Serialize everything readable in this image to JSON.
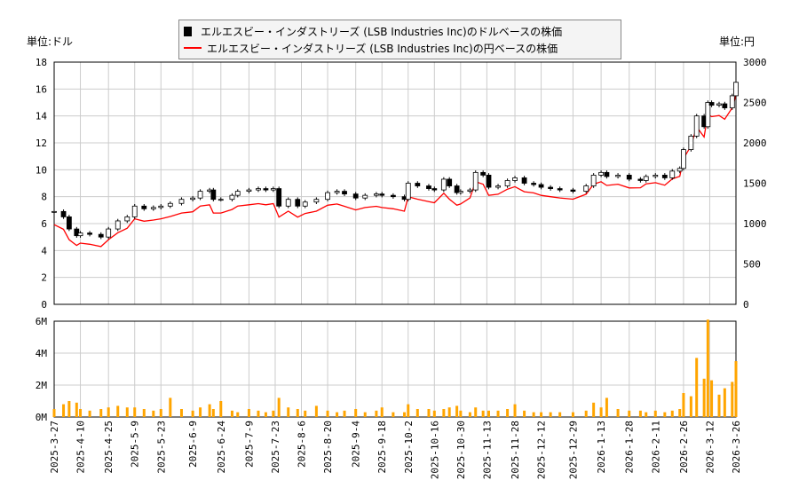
{
  "legend": {
    "usd": "エルエスビー・インダストリーズ (LSB Industries Inc)のドルベースの株価",
    "jpy": "エルエスビー・インダストリーズ (LSB Industries Inc)の円ベースの株価"
  },
  "units": {
    "left": "単位:ドル",
    "right": "単位:円"
  },
  "colors": {
    "candle": "#000000",
    "yen_line": "#ff0000",
    "volume": "#ffa500",
    "grid": "#cccccc"
  },
  "chart_data": [
    {
      "type": "candlestick+line",
      "ylim_left": [
        0,
        18
      ],
      "ylim_right": [
        0,
        3000
      ],
      "grid": true,
      "legend": "top-center",
      "yticks_left": [
        "0",
        "2",
        "4",
        "6",
        "8",
        "10",
        "12",
        "14",
        "16",
        "18"
      ],
      "yticks_right": [
        "0",
        "500",
        "1000",
        "1500",
        "2000",
        "2500",
        "3000"
      ],
      "xticks": [
        "2025-3-27",
        "2025-4-10",
        "2025-4-25",
        "2025-5-9",
        "2025-5-23",
        "2025-6-9",
        "2025-6-24",
        "2025-7-9",
        "2025-7-23",
        "2025-8-6",
        "2025-8-20",
        "2025-9-4",
        "2025-9-18",
        "2025-10-2",
        "2025-10-16",
        "2025-10-30",
        "2025-11-13",
        "2025-11-28",
        "2025-12-12",
        "2025-12-29",
        "2026-1-13",
        "2026-1-28",
        "2026-2-11",
        "2026-2-26",
        "2026-3-12",
        "2026-3-26"
      ],
      "dates": [
        "2025-03-27",
        "2025-04-01",
        "2025-04-04",
        "2025-04-08",
        "2025-04-10",
        "2025-04-15",
        "2025-04-21",
        "2025-04-25",
        "2025-04-30",
        "2025-05-05",
        "2025-05-09",
        "2025-05-14",
        "2025-05-19",
        "2025-05-23",
        "2025-05-28",
        "2025-06-03",
        "2025-06-09",
        "2025-06-13",
        "2025-06-18",
        "2025-06-20",
        "2025-06-24",
        "2025-06-30",
        "2025-07-03",
        "2025-07-09",
        "2025-07-14",
        "2025-07-18",
        "2025-07-22",
        "2025-07-25",
        "2025-07-30",
        "2025-08-04",
        "2025-08-08",
        "2025-08-14",
        "2025-08-20",
        "2025-08-25",
        "2025-08-29",
        "2025-09-04",
        "2025-09-09",
        "2025-09-15",
        "2025-09-18",
        "2025-09-24",
        "2025-09-30",
        "2025-10-02",
        "2025-10-07",
        "2025-10-13",
        "2025-10-16",
        "2025-10-21",
        "2025-10-24",
        "2025-10-28",
        "2025-10-30",
        "2025-11-04",
        "2025-11-07",
        "2025-11-11",
        "2025-11-14",
        "2025-11-19",
        "2025-11-24",
        "2025-11-28",
        "2025-12-03",
        "2025-12-08",
        "2025-12-12",
        "2025-12-17",
        "2025-12-22",
        "2025-12-29",
        "2026-01-05",
        "2026-01-09",
        "2026-01-13",
        "2026-01-16",
        "2026-01-22",
        "2026-01-28",
        "2026-02-03",
        "2026-02-06",
        "2026-02-11",
        "2026-02-16",
        "2026-02-20",
        "2026-02-24",
        "2026-02-26",
        "2026-03-02",
        "2026-03-05",
        "2026-03-09",
        "2026-03-11",
        "2026-03-13",
        "2026-03-17",
        "2026-03-20",
        "2026-03-24",
        "2026-03-26"
      ],
      "usd_close": [
        6.9,
        6.5,
        5.6,
        5.1,
        5.3,
        5.2,
        5.0,
        5.6,
        6.2,
        6.5,
        7.3,
        7.1,
        7.2,
        7.3,
        7.5,
        7.8,
        7.9,
        8.4,
        8.5,
        7.8,
        7.8,
        8.1,
        8.4,
        8.5,
        8.6,
        8.5,
        8.6,
        7.3,
        7.8,
        7.3,
        7.6,
        7.8,
        8.3,
        8.4,
        8.2,
        7.9,
        8.1,
        8.2,
        8.1,
        8.0,
        7.8,
        9.0,
        8.8,
        8.6,
        8.5,
        9.3,
        8.8,
        8.3,
        8.4,
        8.5,
        9.8,
        9.6,
        8.7,
        8.8,
        9.2,
        9.4,
        9.0,
        8.9,
        8.7,
        8.6,
        8.5,
        8.4,
        8.8,
        9.6,
        9.8,
        9.5,
        9.6,
        9.3,
        9.2,
        9.5,
        9.6,
        9.4,
        9.9,
        10.1,
        11.5,
        12.5,
        14.0,
        13.2,
        15.0,
        14.8,
        14.9,
        14.6,
        15.5,
        16.5
      ],
      "jpy_close": [
        987,
        930,
        800,
        730,
        758,
        744,
        715,
        801,
        887,
        943,
        1059,
        1030,
        1044,
        1059,
        1088,
        1131,
        1146,
        1218,
        1233,
        1131,
        1131,
        1175,
        1218,
        1233,
        1247,
        1233,
        1247,
        1080,
        1154,
        1080,
        1125,
        1154,
        1228,
        1243,
        1214,
        1169,
        1199,
        1214,
        1199,
        1184,
        1154,
        1332,
        1302,
        1273,
        1258,
        1376,
        1302,
        1228,
        1243,
        1318,
        1519,
        1488,
        1349,
        1364,
        1426,
        1457,
        1395,
        1380,
        1349,
        1333,
        1318,
        1302,
        1364,
        1488,
        1519,
        1473,
        1488,
        1442,
        1444,
        1492,
        1507,
        1476,
        1554,
        1586,
        1806,
        1963,
        2198,
        2072,
        2355,
        2324,
        2339,
        2292,
        2434,
        2590
      ]
    },
    {
      "type": "bar",
      "ylim": [
        0,
        6
      ],
      "yticks": [
        "0M",
        "2M",
        "4M",
        "6M"
      ],
      "volume_millions": [
        0.5,
        0.8,
        1.0,
        0.9,
        0.5,
        0.4,
        0.5,
        0.6,
        0.7,
        0.6,
        0.6,
        0.5,
        0.4,
        0.5,
        1.2,
        0.5,
        0.4,
        0.6,
        0.8,
        0.5,
        1.0,
        0.4,
        0.3,
        0.5,
        0.4,
        0.3,
        0.4,
        1.2,
        0.6,
        0.5,
        0.4,
        0.7,
        0.4,
        0.3,
        0.4,
        0.5,
        0.3,
        0.4,
        0.6,
        0.3,
        0.3,
        0.8,
        0.5,
        0.5,
        0.4,
        0.5,
        0.6,
        0.7,
        0.4,
        0.3,
        0.6,
        0.4,
        0.4,
        0.4,
        0.5,
        0.8,
        0.4,
        0.3,
        0.3,
        0.3,
        0.3,
        0.3,
        0.4,
        0.9,
        0.6,
        1.2,
        0.5,
        0.4,
        0.4,
        0.3,
        0.4,
        0.3,
        0.4,
        0.5,
        1.5,
        1.3,
        3.7,
        2.4,
        6.1,
        2.3,
        1.4,
        1.8,
        2.2,
        3.5
      ]
    }
  ]
}
